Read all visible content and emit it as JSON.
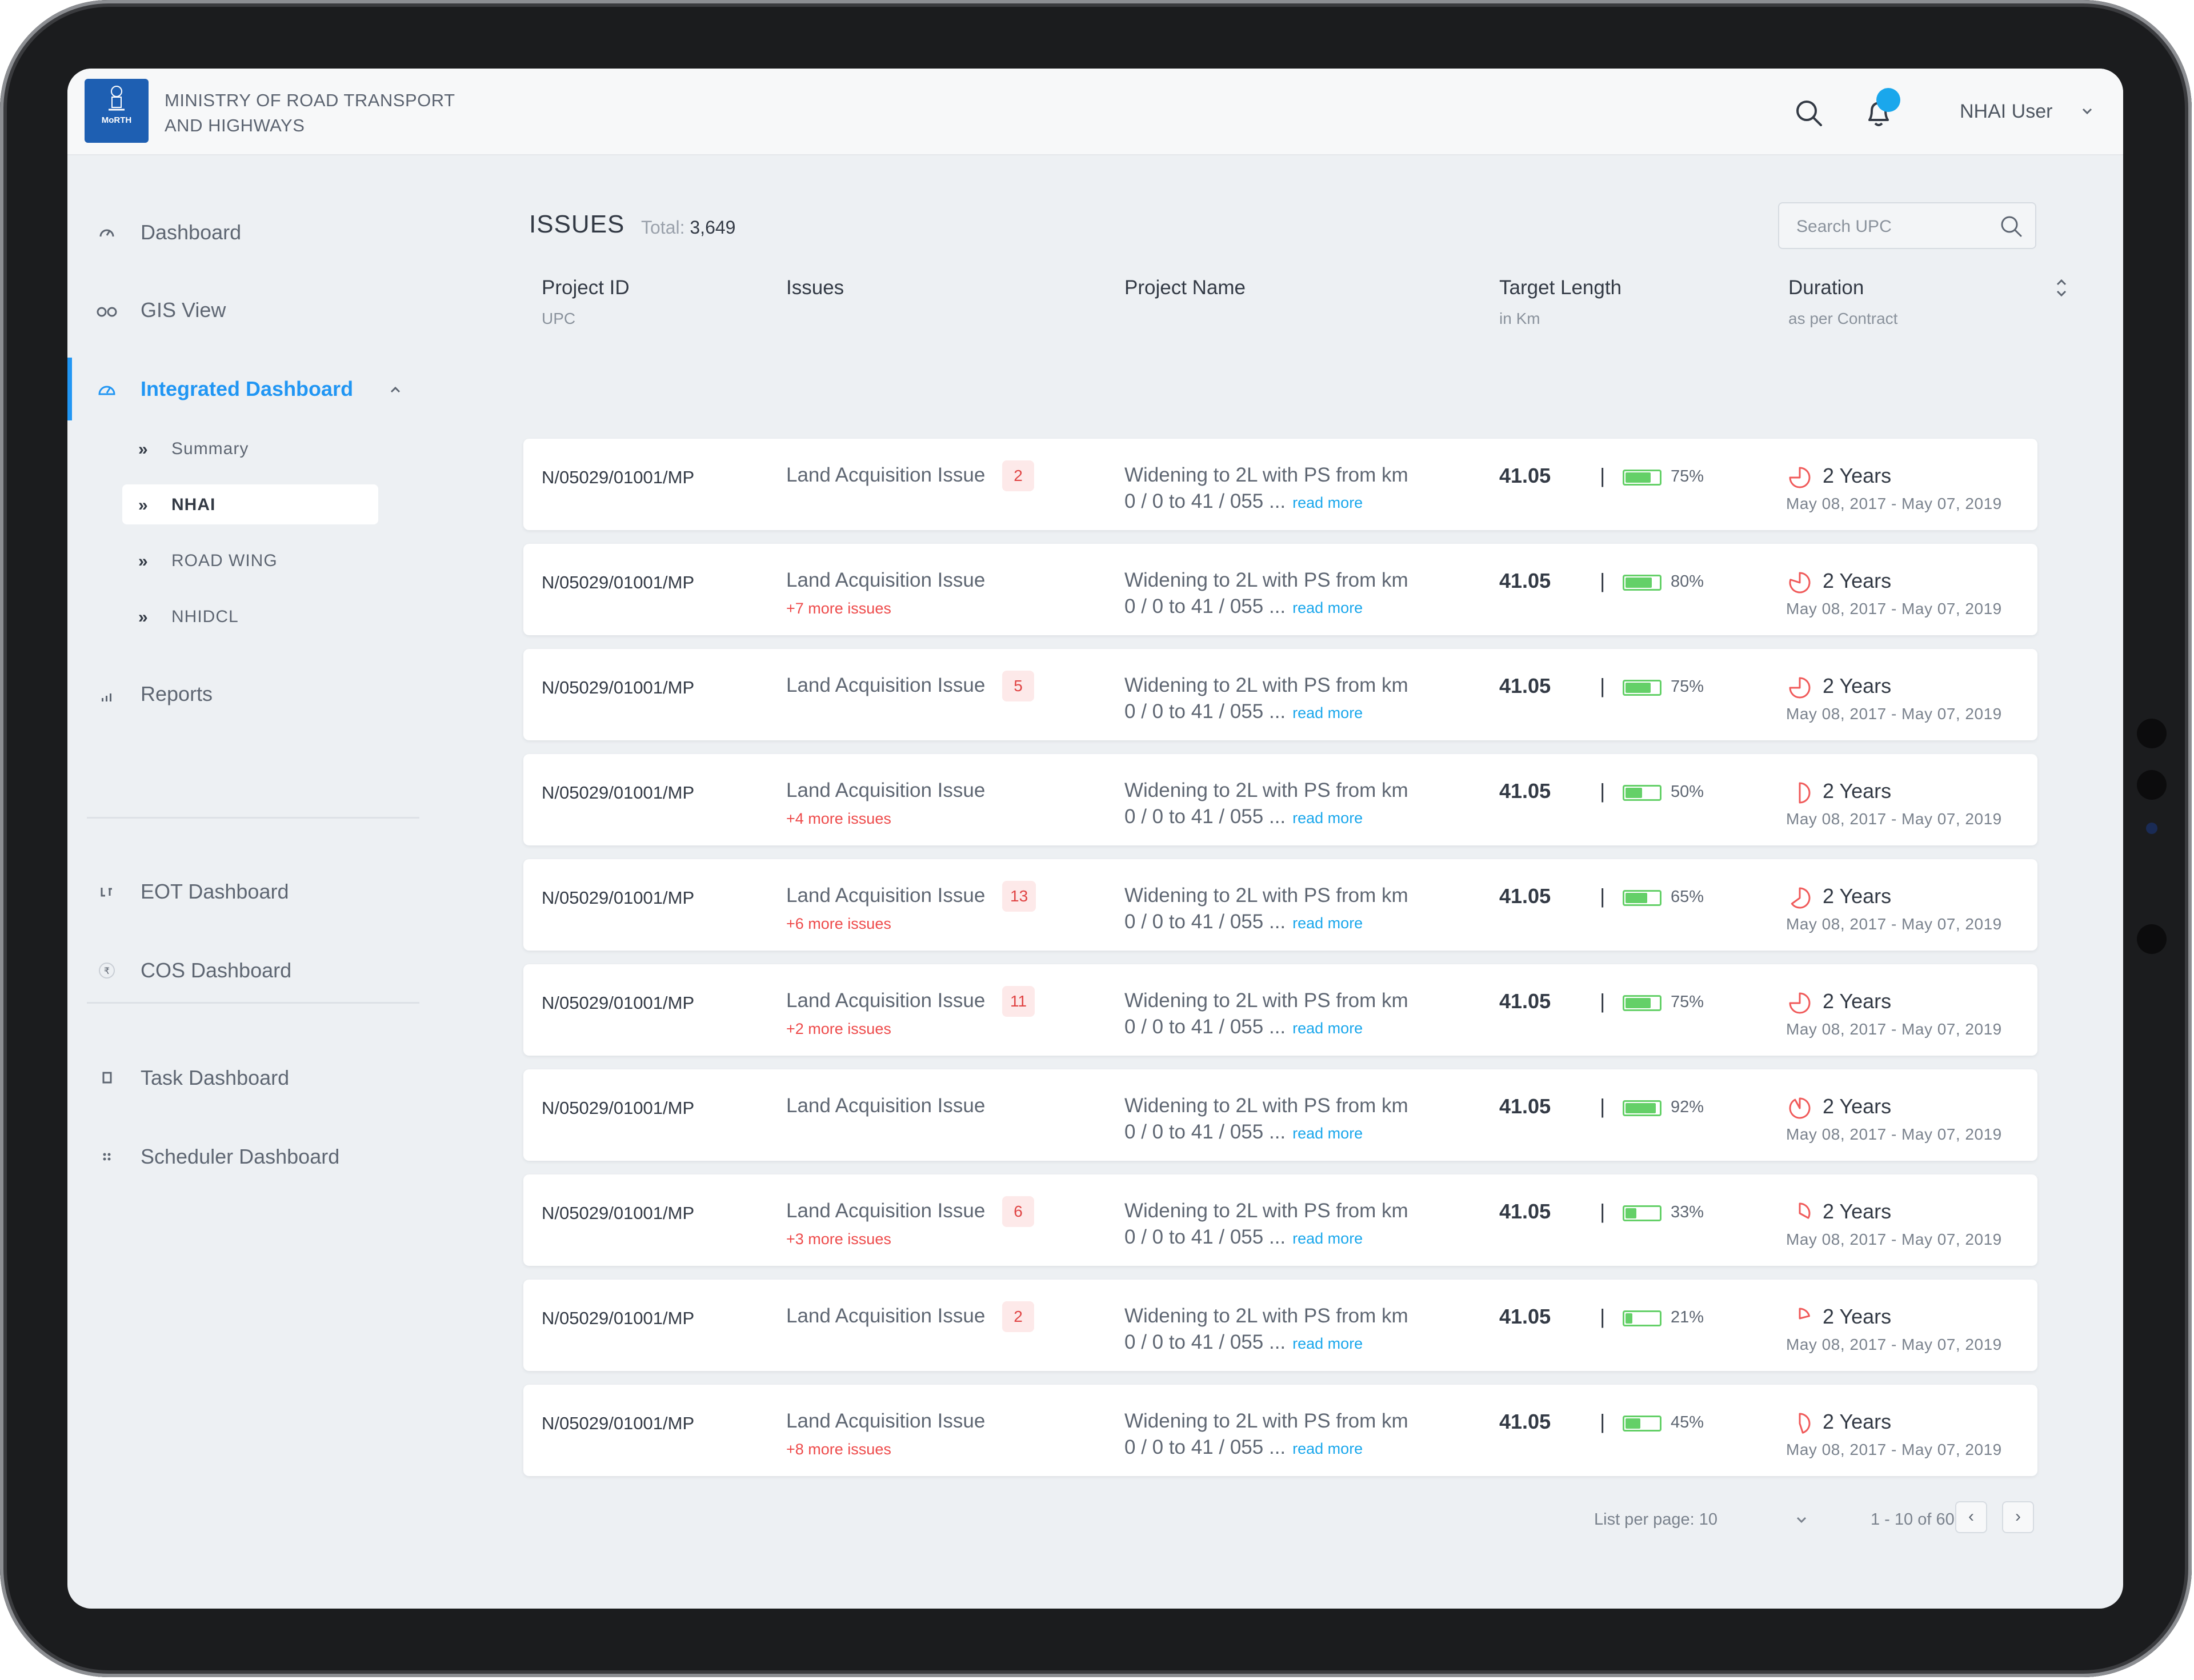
{
  "header": {
    "ministry_line1": "MINISTRY OF ROAD TRANSPORT",
    "ministry_line2": "AND HIGHWAYS",
    "logo_text": "MoRTH",
    "user_name": "NHAI User"
  },
  "sidebar": {
    "items": [
      {
        "label": "Dashboard",
        "icon": "gauge-icon"
      },
      {
        "label": "GIS View",
        "icon": "glasses-icon"
      },
      {
        "label": "Integrated Dashboard",
        "icon": "dashboard-dial-icon"
      },
      {
        "label": "Reports",
        "icon": "bar-chart-icon"
      },
      {
        "label": "EOT Dashboard",
        "icon": "eot-icon"
      },
      {
        "label": "COS Dashboard",
        "icon": "rupee-icon"
      },
      {
        "label": "Task Dashboard",
        "icon": "square-icon"
      },
      {
        "label": "Scheduler Dashboard",
        "icon": "grid-dots-icon"
      }
    ],
    "sub_items": [
      {
        "label": "Summary"
      },
      {
        "label": "NHAI"
      },
      {
        "label": "ROAD WING"
      },
      {
        "label": "NHIDCL"
      }
    ],
    "accent_color": "#2196f3"
  },
  "main": {
    "title": "ISSUES",
    "total_label": "Total:",
    "total_value": "3,649",
    "search_placeholder": "Search UPC",
    "columns": [
      {
        "label": "Project ID",
        "sub": "UPC"
      },
      {
        "label": "Issues",
        "sub": ""
      },
      {
        "label": "Project Name",
        "sub": ""
      },
      {
        "label": "Target Length",
        "sub": "in Km"
      },
      {
        "label": "Duration",
        "sub": "as per Contract"
      }
    ],
    "rows": [
      {
        "id": "N/05029/01001/MP",
        "issue": "Land Acquisition Issue",
        "badge": "2",
        "more": "",
        "name1": "Widening to 2L with PS from km",
        "name2": "0 / 0 to 41 / 055 ...",
        "read": "read more",
        "length": "41.05",
        "sep": "|",
        "pct": "75%",
        "progress": 0.75,
        "duration": "2 Years",
        "dates": "May 08, 2017 - May  07, 2019"
      },
      {
        "id": "N/05029/01001/MP",
        "issue": "Land Acquisition Issue",
        "badge": "",
        "more": "+7 more issues",
        "name1": "Widening to 2L with PS from km",
        "name2": "0 / 0 to 41 / 055 ...",
        "read": "read more",
        "length": "41.05",
        "sep": "|",
        "pct": "80%",
        "progress": 0.8,
        "duration": "2 Years",
        "dates": "May 08, 2017 - May  07, 2019"
      },
      {
        "id": "N/05029/01001/MP",
        "issue": "Land Acquisition Issue",
        "badge": "5",
        "more": "",
        "name1": "Widening to 2L with PS from km",
        "name2": "0 / 0 to 41 / 055 ...",
        "read": "read more",
        "length": "41.05",
        "sep": "|",
        "pct": "75%",
        "progress": 0.75,
        "duration": "2 Years",
        "dates": "May 08, 2017 - May  07, 2019"
      },
      {
        "id": "N/05029/01001/MP",
        "issue": "Land Acquisition Issue",
        "badge": "",
        "more": "+4 more issues",
        "name1": "Widening to 2L with PS from km",
        "name2": "0 / 0 to 41 / 055 ...",
        "read": "read more",
        "length": "41.05",
        "sep": "|",
        "pct": "50%",
        "progress": 0.5,
        "duration": "2 Years",
        "dates": "May 08, 2017 - May  07, 2019"
      },
      {
        "id": "N/05029/01001/MP",
        "issue": "Land Acquisition Issue",
        "badge": "13",
        "more": "+6 more issues",
        "name1": "Widening to 2L with PS from km",
        "name2": "0 / 0 to 41 / 055 ...",
        "read": "read more",
        "length": "41.05",
        "sep": "|",
        "pct": "65%",
        "progress": 0.65,
        "duration": "2 Years",
        "dates": "May 08, 2017 - May  07, 2019"
      },
      {
        "id": "N/05029/01001/MP",
        "issue": "Land Acquisition Issue",
        "badge": "11",
        "more": "+2 more issues",
        "name1": "Widening to 2L with PS from km",
        "name2": "0 / 0 to 41 / 055 ...",
        "read": "read more",
        "length": "41.05",
        "sep": "|",
        "pct": "75%",
        "progress": 0.75,
        "duration": "2 Years",
        "dates": "May 08, 2017 - May  07, 2019"
      },
      {
        "id": "N/05029/01001/MP",
        "issue": "Land Acquisition Issue",
        "badge": "",
        "more": "",
        "name1": "Widening to 2L with PS from km",
        "name2": "0 / 0 to 41 / 055 ...",
        "read": "read more",
        "length": "41.05",
        "sep": "|",
        "pct": "92%",
        "progress": 0.92,
        "duration": "2 Years",
        "dates": "May 08, 2017 - May  07, 2019"
      },
      {
        "id": "N/05029/01001/MP",
        "issue": "Land Acquisition Issue",
        "badge": "6",
        "more": "+3 more issues",
        "name1": "Widening to 2L with PS from km",
        "name2": "0 / 0 to 41 / 055 ...",
        "read": "read more",
        "length": "41.05",
        "sep": "|",
        "pct": "33%",
        "progress": 0.33,
        "duration": "2 Years",
        "dates": "May 08, 2017 - May  07, 2019"
      },
      {
        "id": "N/05029/01001/MP",
        "issue": "Land Acquisition Issue",
        "badge": "2",
        "more": "",
        "name1": "Widening to 2L with PS from km",
        "name2": "0 / 0 to 41 / 055 ...",
        "read": "read more",
        "length": "41.05",
        "sep": "|",
        "pct": "21%",
        "progress": 0.21,
        "duration": "2 Years",
        "dates": "May 08, 2017 - May  07, 2019"
      },
      {
        "id": "N/05029/01001/MP",
        "issue": "Land Acquisition Issue",
        "badge": "",
        "more": "+8 more issues",
        "name1": "Widening to 2L with PS from km",
        "name2": "0 / 0 to 41 / 055 ...",
        "read": "read more",
        "length": "41.05",
        "sep": "|",
        "pct": "45%",
        "progress": 0.45,
        "duration": "2 Years",
        "dates": "May 08, 2017 - May  07, 2019"
      }
    ],
    "pagination": {
      "per_page_label": "List per page: 10",
      "range": "1 - 10 of 60",
      "prev": "‹",
      "next": "›"
    }
  },
  "colors": {
    "accent": "#2196f3",
    "notification_dot": "#1aa7ec",
    "issue_red": "#ee4b4b",
    "progress_green": "#64d068",
    "pie_red": "#f05a5a"
  }
}
